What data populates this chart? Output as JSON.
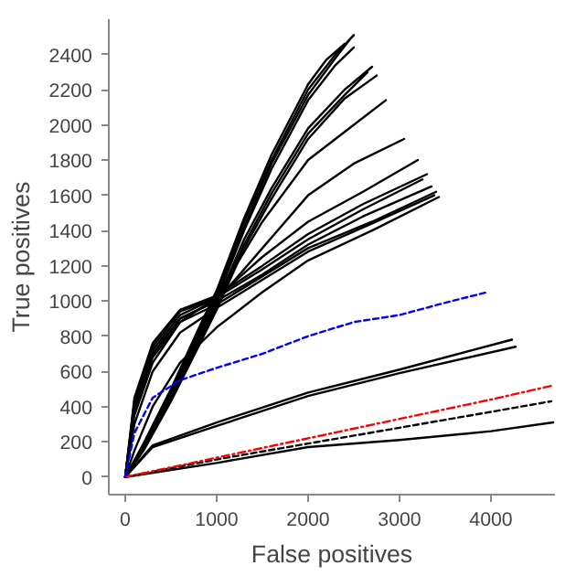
{
  "chart_data": {
    "type": "line",
    "xlabel": "False positives",
    "ylabel": "True positives",
    "xlim": [
      -180,
      4700
    ],
    "ylim": [
      -100,
      2600
    ],
    "xticks": [
      0,
      1000,
      2000,
      3000,
      4000
    ],
    "yticks": [
      0,
      200,
      400,
      600,
      800,
      1000,
      1200,
      1400,
      1600,
      1800,
      2000,
      2200,
      2400
    ],
    "grid": false,
    "marker": "none",
    "line_style": "solid",
    "series": [
      {
        "color": "#000000",
        "x": [
          0,
          200,
          500,
          800,
          1000,
          1300,
          1600,
          2000,
          2300,
          2500
        ],
        "values": [
          0,
          180,
          480,
          820,
          1050,
          1450,
          1800,
          2200,
          2400,
          2510
        ]
      },
      {
        "color": "#000000",
        "x": [
          0,
          200,
          500,
          800,
          1000,
          1300,
          1600,
          2000,
          2300,
          2450
        ],
        "values": [
          0,
          170,
          460,
          800,
          1030,
          1420,
          1780,
          2170,
          2380,
          2480
        ]
      },
      {
        "color": "#000000",
        "x": [
          0,
          200,
          500,
          800,
          1000,
          1300,
          1600,
          2000,
          2200,
          2400
        ],
        "values": [
          0,
          190,
          500,
          840,
          1060,
          1470,
          1830,
          2230,
          2370,
          2460
        ]
      },
      {
        "color": "#000000",
        "x": [
          0,
          200,
          500,
          800,
          1000,
          1300,
          1600,
          2000,
          2300,
          2500
        ],
        "values": [
          0,
          160,
          450,
          790,
          1010,
          1400,
          1750,
          2140,
          2340,
          2440
        ]
      },
      {
        "color": "#000000",
        "x": [
          0,
          200,
          500,
          800,
          1000,
          1300,
          1600,
          2000,
          2400,
          2700
        ],
        "values": [
          0,
          170,
          460,
          780,
          990,
          1350,
          1640,
          1980,
          2200,
          2330
        ]
      },
      {
        "color": "#000000",
        "x": [
          0,
          200,
          500,
          800,
          1000,
          1300,
          1600,
          2000,
          2400,
          2650
        ],
        "values": [
          0,
          160,
          440,
          760,
          970,
          1320,
          1610,
          1950,
          2170,
          2300
        ]
      },
      {
        "color": "#000000",
        "x": [
          0,
          200,
          500,
          800,
          1000,
          1300,
          1600,
          2000,
          2400,
          2750
        ],
        "values": [
          0,
          150,
          430,
          740,
          950,
          1300,
          1580,
          1920,
          2150,
          2280
        ]
      },
      {
        "color": "#000000",
        "x": [
          0,
          100,
          300,
          600,
          1000,
          1500,
          2000,
          2500,
          2850
        ],
        "values": [
          0,
          350,
          650,
          880,
          1020,
          1450,
          1800,
          2000,
          2140
        ]
      },
      {
        "color": "#000000",
        "x": [
          0,
          100,
          300,
          600,
          1000,
          1500,
          2000,
          2500,
          3050
        ],
        "values": [
          0,
          400,
          700,
          900,
          1000,
          1300,
          1600,
          1780,
          1920
        ]
      },
      {
        "color": "#000000",
        "x": [
          0,
          100,
          300,
          600,
          1000,
          1500,
          2000,
          2600,
          3200
        ],
        "values": [
          0,
          420,
          720,
          920,
          1020,
          1250,
          1450,
          1620,
          1800
        ]
      },
      {
        "color": "#000000",
        "x": [
          0,
          100,
          300,
          600,
          1000,
          1500,
          2000,
          2600,
          3300
        ],
        "values": [
          0,
          450,
          760,
          950,
          1030,
          1200,
          1380,
          1550,
          1720
        ]
      },
      {
        "color": "#000000",
        "x": [
          0,
          100,
          300,
          600,
          1000,
          1500,
          2000,
          2600,
          3250
        ],
        "values": [
          0,
          430,
          740,
          940,
          1020,
          1180,
          1350,
          1520,
          1690
        ]
      },
      {
        "color": "#000000",
        "x": [
          0,
          100,
          300,
          600,
          1000,
          1500,
          2000,
          2600,
          3350
        ],
        "values": [
          0,
          400,
          700,
          900,
          1000,
          1150,
          1320,
          1480,
          1650
        ]
      },
      {
        "color": "#000000",
        "x": [
          0,
          100,
          300,
          600,
          1000,
          1500,
          2000,
          2700,
          3400
        ],
        "values": [
          0,
          380,
          680,
          880,
          980,
          1140,
          1300,
          1450,
          1620
        ]
      },
      {
        "color": "#000000",
        "x": [
          0,
          100,
          300,
          600,
          1000,
          1500,
          2000,
          2700,
          3380
        ],
        "values": [
          0,
          300,
          600,
          820,
          960,
          1120,
          1280,
          1440,
          1600
        ]
      },
      {
        "color": "#000000",
        "x": [
          0,
          100,
          300,
          600,
          1000,
          1500,
          2000,
          2700,
          3430
        ],
        "values": [
          0,
          150,
          400,
          650,
          850,
          1050,
          1230,
          1400,
          1590
        ]
      },
      {
        "color": "#0000ff",
        "line_style": "dashed",
        "x": [
          0,
          100,
          300,
          600,
          1000,
          1500,
          2000,
          2500,
          3000,
          3500,
          3960
        ],
        "values": [
          0,
          250,
          450,
          550,
          620,
          700,
          800,
          880,
          920,
          990,
          1050
        ]
      },
      {
        "color": "#000000",
        "x": [
          0,
          300,
          1000,
          2000,
          3000,
          4230
        ],
        "values": [
          0,
          180,
          310,
          480,
          610,
          780
        ]
      },
      {
        "color": "#000000",
        "x": [
          0,
          300,
          1000,
          2000,
          3000,
          4270
        ],
        "values": [
          0,
          170,
          290,
          460,
          590,
          740
        ]
      },
      {
        "color": "#ff0000",
        "line_style": "dashdot",
        "x": [
          0,
          1000,
          2000,
          3000,
          4000,
          4680
        ],
        "values": [
          0,
          110,
          220,
          330,
          440,
          520
        ]
      },
      {
        "color": "#000000",
        "line_style": "dashed",
        "x": [
          0,
          1000,
          2000,
          3000,
          4000,
          4660
        ],
        "values": [
          0,
          100,
          190,
          280,
          370,
          430
        ]
      },
      {
        "color": "#000000",
        "x": [
          0,
          1000,
          2000,
          3000,
          4000,
          4680
        ],
        "values": [
          0,
          80,
          170,
          210,
          260,
          310
        ]
      }
    ]
  }
}
